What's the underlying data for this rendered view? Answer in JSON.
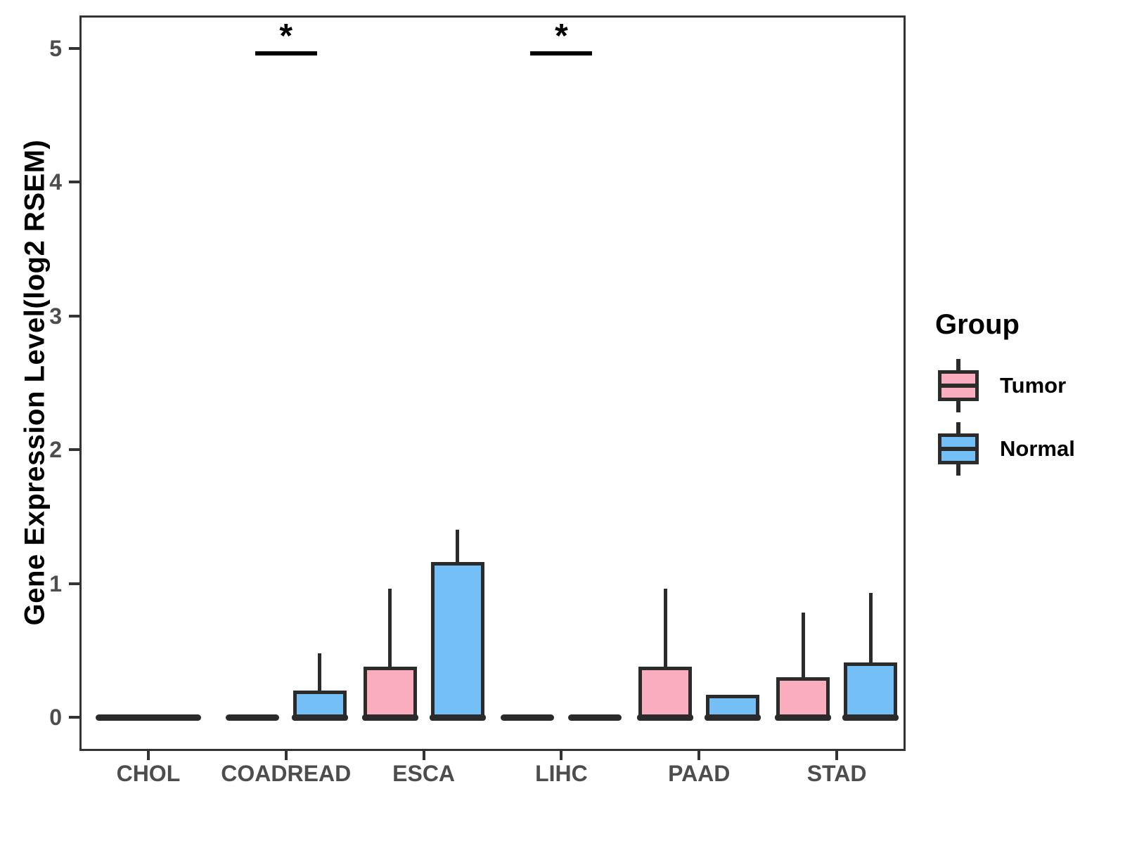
{
  "chart_data": {
    "type": "boxplot",
    "title": "",
    "xlabel": "",
    "ylabel": "Gene Expression Level(log2 RSEM)",
    "ylim": [
      -0.25,
      5.25
    ],
    "yticks": [
      "0",
      "1",
      "2",
      "3",
      "4",
      "5"
    ],
    "ytick_values": [
      0,
      1,
      2,
      3,
      4,
      5
    ],
    "grid": "off",
    "categories": [
      "CHOL",
      "COADREAD",
      "ESCA",
      "LIHC",
      "PAAD",
      "STAD"
    ],
    "series_names": [
      "Tumor",
      "Normal"
    ],
    "groups": [
      {
        "category": "CHOL",
        "significance": "",
        "merged_flat": true,
        "boxes": [
          {
            "group": "Tumor",
            "whisker_low": 0,
            "q1": 0,
            "median": 0,
            "q3": 0,
            "whisker_high": 0,
            "flat": true
          },
          {
            "group": "Normal",
            "whisker_low": 0,
            "q1": 0,
            "median": 0,
            "q3": 0,
            "whisker_high": 0,
            "flat": true
          }
        ]
      },
      {
        "category": "COADREAD",
        "significance": "*",
        "merged_flat": false,
        "boxes": [
          {
            "group": "Tumor",
            "whisker_low": 0,
            "q1": 0,
            "median": 0,
            "q3": 0,
            "whisker_high": 0,
            "flat": true
          },
          {
            "group": "Normal",
            "whisker_low": 0,
            "q1": 0,
            "median": 0,
            "q3": 0.2,
            "whisker_high": 0.48,
            "flat": false
          }
        ]
      },
      {
        "category": "ESCA",
        "significance": "",
        "merged_flat": false,
        "boxes": [
          {
            "group": "Tumor",
            "whisker_low": 0,
            "q1": 0,
            "median": 0,
            "q3": 0.38,
            "whisker_high": 0.96,
            "flat": false
          },
          {
            "group": "Normal",
            "whisker_low": 0,
            "q1": 0,
            "median": 0,
            "q3": 1.16,
            "whisker_high": 1.4,
            "flat": false
          }
        ]
      },
      {
        "category": "LIHC",
        "significance": "*",
        "merged_flat": false,
        "boxes": [
          {
            "group": "Tumor",
            "whisker_low": 0,
            "q1": 0,
            "median": 0,
            "q3": 0,
            "whisker_high": 0,
            "flat": true
          },
          {
            "group": "Normal",
            "whisker_low": 0,
            "q1": 0,
            "median": 0,
            "q3": 0,
            "whisker_high": 0,
            "flat": true
          }
        ]
      },
      {
        "category": "PAAD",
        "significance": "",
        "merged_flat": false,
        "boxes": [
          {
            "group": "Tumor",
            "whisker_low": 0,
            "q1": 0,
            "median": 0,
            "q3": 0.38,
            "whisker_high": 0.96,
            "flat": false
          },
          {
            "group": "Normal",
            "whisker_low": 0,
            "q1": 0,
            "median": 0,
            "q3": 0.17,
            "whisker_high": 0.17,
            "flat": false
          }
        ]
      },
      {
        "category": "STAD",
        "significance": "",
        "merged_flat": false,
        "boxes": [
          {
            "group": "Tumor",
            "whisker_low": 0,
            "q1": 0,
            "median": 0,
            "q3": 0.3,
            "whisker_high": 0.78,
            "flat": false
          },
          {
            "group": "Normal",
            "whisker_low": 0,
            "q1": 0,
            "median": 0,
            "q3": 0.41,
            "whisker_high": 0.93,
            "flat": false
          }
        ]
      }
    ],
    "legend": {
      "title": "Group",
      "position": "right",
      "items": [
        {
          "label": "Tumor",
          "color": "#F9ADBF"
        },
        {
          "label": "Normal",
          "color": "#74C0F6"
        }
      ]
    },
    "colors": {
      "tumor_fill": "#F9ADBF",
      "normal_fill": "#74C0F6",
      "stroke": "#2b2b2b",
      "panel_border": "#333333",
      "axis_text": "#4d4d4d",
      "axis_title": "#000000",
      "significance": "#000000"
    }
  }
}
